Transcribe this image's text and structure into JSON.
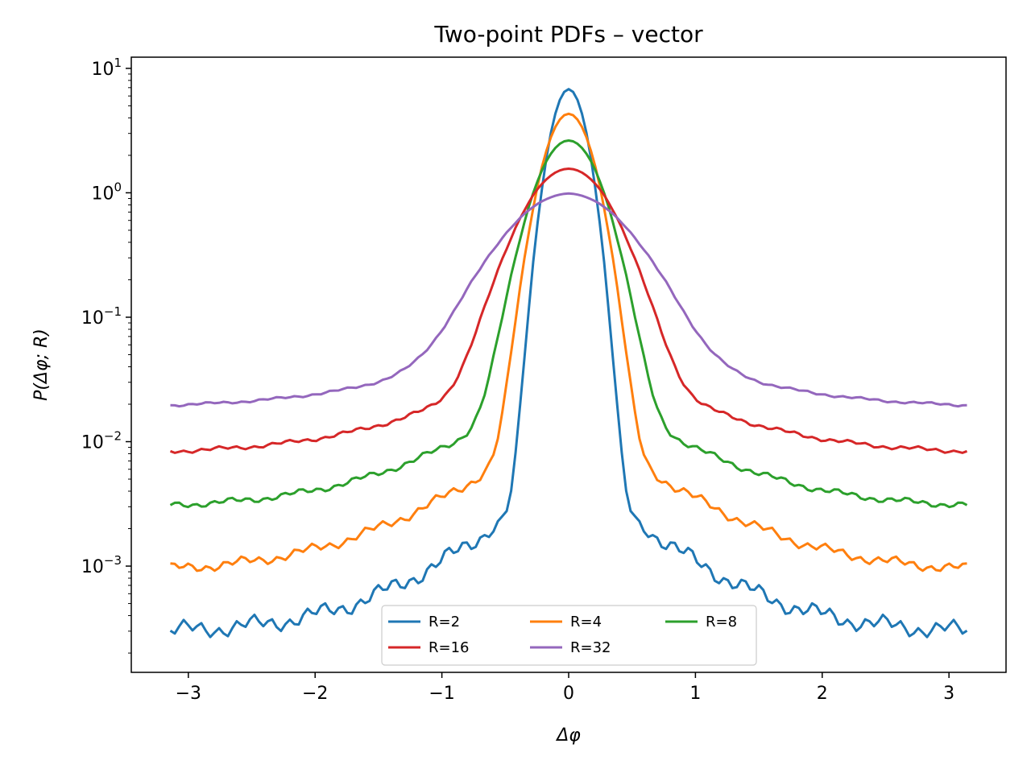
{
  "chart_data": {
    "type": "line",
    "title": "Two-point PDFs – vector",
    "xlabel": "Δφ",
    "ylabel": "P(Δφ; R)",
    "yscale": "log",
    "xlim": [
      -3.45,
      3.45
    ],
    "ylim": [
      0.00014,
      12.3
    ],
    "xticks": [
      -3,
      -2,
      -1,
      0,
      1,
      2,
      3
    ],
    "xtick_labels": [
      "−3",
      "−2",
      "−1",
      "0",
      "1",
      "2",
      "3"
    ],
    "yticks": [
      0.001,
      0.01,
      0.1,
      1,
      10
    ],
    "ytick_labels": [
      {
        "base": "10",
        "exp": "−3"
      },
      {
        "base": "10",
        "exp": "−2"
      },
      {
        "base": "10",
        "exp": "−1"
      },
      {
        "base": "10",
        "exp": "0"
      },
      {
        "base": "10",
        "exp": "1"
      }
    ],
    "grid": false,
    "legend_position": "lower-center",
    "legend_columns": 3,
    "x_domain": [
      -3.1416,
      3.1416
    ],
    "series": [
      {
        "name": "R=2",
        "color": "#1f77b4",
        "peak": 6.8,
        "sigma": 0.11,
        "floor": 0.00029,
        "tail_amp": 0.0055,
        "tail_scale": 0.52,
        "noise": 0.12
      },
      {
        "name": "R=4",
        "color": "#ff7f0e",
        "peak": 4.3,
        "sigma": 0.15,
        "floor": 0.00088,
        "tail_amp": 0.014,
        "tail_scale": 0.6,
        "noise": 0.07
      },
      {
        "name": "R=8",
        "color": "#2ca02c",
        "peak": 2.6,
        "sigma": 0.2,
        "floor": 0.0029,
        "tail_amp": 0.03,
        "tail_scale": 0.62,
        "noise": 0.045
      },
      {
        "name": "R=16",
        "color": "#d62728",
        "peak": 1.5,
        "sigma": 0.28,
        "floor": 0.0079,
        "tail_amp": 0.055,
        "tail_scale": 0.66,
        "noise": 0.03
      },
      {
        "name": "R=32",
        "color": "#9467bd",
        "peak": 0.88,
        "sigma": 0.4,
        "floor": 0.0185,
        "tail_amp": 0.09,
        "tail_scale": 0.72,
        "noise": 0.018
      }
    ]
  }
}
